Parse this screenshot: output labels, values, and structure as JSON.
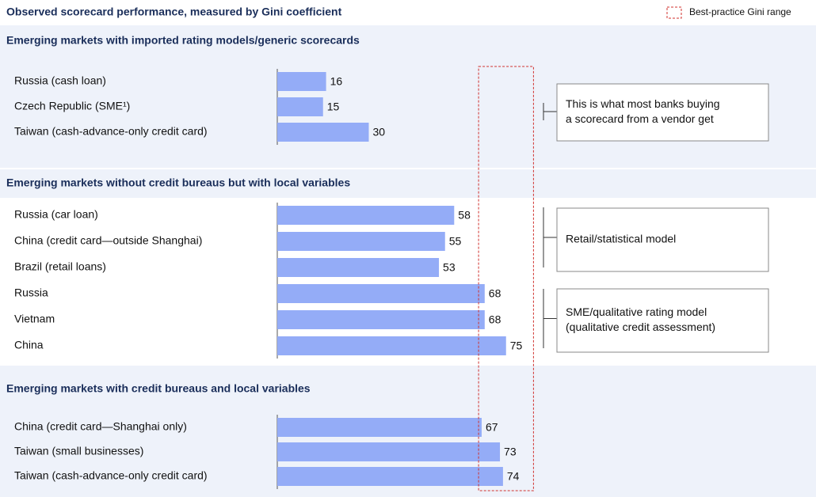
{
  "chart_data": {
    "type": "bar",
    "title": "Observed scorecard performance, measured by Gini coefficient",
    "legend_label": "Best-practice Gini range",
    "best_practice_range": [
      66,
      84
    ],
    "range_color": "#d0312d",
    "color": "#94acf7",
    "xlim": [
      0,
      100
    ],
    "groups": [
      {
        "title": "Emerging markets with imported rating models/generic scorecards",
        "categories": [
          "Russia (cash loan)",
          "Czech Republic (SME¹)",
          "Taiwan (cash-advance-only credit card)"
        ],
        "values": [
          16,
          15,
          30
        ]
      },
      {
        "title": "Emerging markets without credit bureaus but with local variables",
        "categories": [
          "Russia (car loan)",
          "China (credit card—outside Shanghai)",
          "Brazil (retail loans)",
          "Russia",
          "Vietnam",
          "China"
        ],
        "values": [
          58,
          55,
          53,
          68,
          68,
          75
        ]
      },
      {
        "title": "Emerging markets with credit bureaus and local variables",
        "categories": [
          "China (credit card—Shanghai only)",
          "Taiwan (small businesses)",
          "Taiwan (cash-advance-only credit card)"
        ],
        "values": [
          67,
          73,
          74
        ]
      }
    ],
    "annotations": [
      {
        "lines": [
          "This is what most banks buying",
          "a scorecard from a vendor get"
        ]
      },
      {
        "lines": [
          "Retail/statistical model"
        ]
      },
      {
        "lines": [
          "SME/qualitative rating model",
          "(qualitative credit assessment)"
        ]
      }
    ]
  }
}
